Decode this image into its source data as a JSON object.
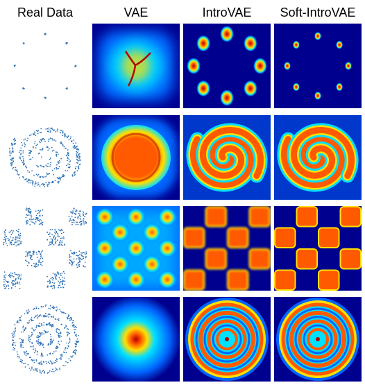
{
  "headers": {
    "real_data": "Real Data",
    "vae": "VAE",
    "introvae": "IntroVAE",
    "soft_introvae": "Soft-IntroVAE"
  },
  "rows": [
    {
      "dataset": "8-gaussians"
    },
    {
      "dataset": "2-spirals"
    },
    {
      "dataset": "checkerboard"
    },
    {
      "dataset": "rings"
    }
  ],
  "colors": {
    "background_low": "#00008f",
    "low": "#0066ff",
    "mid": "#00e0ff",
    "mid_high": "#ffe000",
    "high": "#ff5a00",
    "peak": "#b40000",
    "sample_dot": "#2f73b6"
  }
}
